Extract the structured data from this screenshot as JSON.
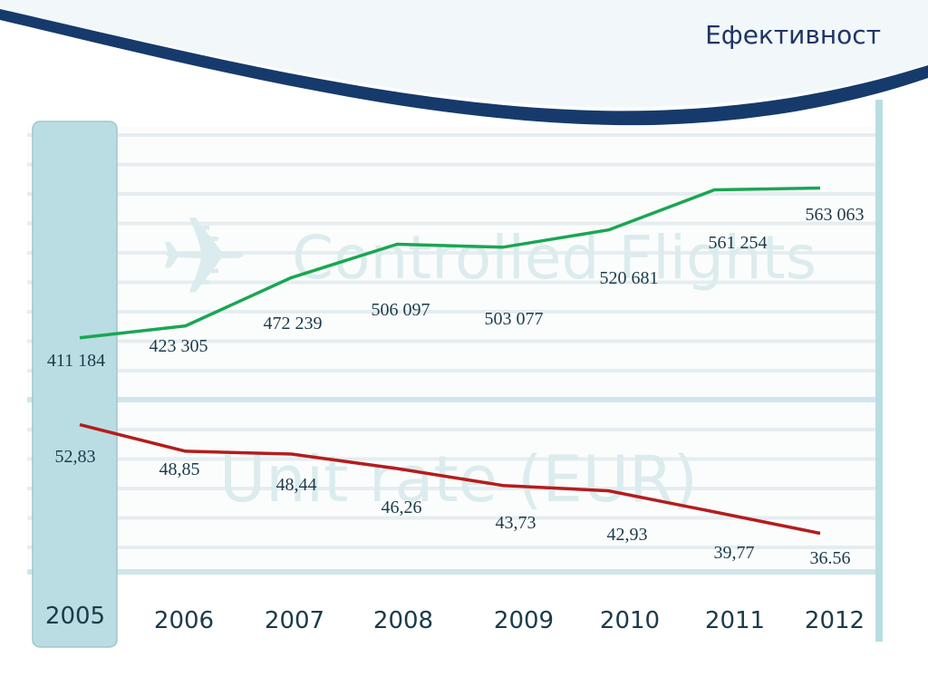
{
  "page": {
    "title": "Ефективност",
    "colors": {
      "navy": "#163a6b",
      "teal_highlight": "#b9dde2",
      "controlled_flights_line": "#1aa652",
      "unit_rate_line": "#b51c1c"
    }
  },
  "chart_data": [
    {
      "type": "line",
      "title": "Controlled Flights",
      "watermark_icon": "airplane-icon",
      "x": [
        "2005",
        "2006",
        "2007",
        "2008",
        "2009",
        "2010",
        "2011",
        "2012"
      ],
      "series": [
        {
          "values": [
            411184,
            423305,
            472239,
            506097,
            503077,
            520681,
            561254,
            563063
          ],
          "labels": [
            "411 184",
            "423 305",
            "472 239",
            "506 097",
            "503 077",
            "520 681",
            "561 254",
            "563 063"
          ],
          "color": "#1aa652"
        }
      ],
      "grid": true,
      "highlighted_category": "2005"
    },
    {
      "type": "line",
      "title": "Unit rate (EUR)",
      "x": [
        "2005",
        "2006",
        "2007",
        "2008",
        "2009",
        "2010",
        "2011",
        "2012"
      ],
      "series": [
        {
          "values": [
            52.83,
            48.85,
            48.44,
            46.26,
            43.73,
            42.93,
            39.77,
            36.56
          ],
          "labels": [
            "52,83",
            "48,85",
            "48,44",
            "46,26",
            "43,73",
            "42,93",
            "39,77",
            "36.56"
          ],
          "color": "#b51c1c"
        }
      ],
      "grid": true,
      "highlighted_category": "2005"
    }
  ]
}
